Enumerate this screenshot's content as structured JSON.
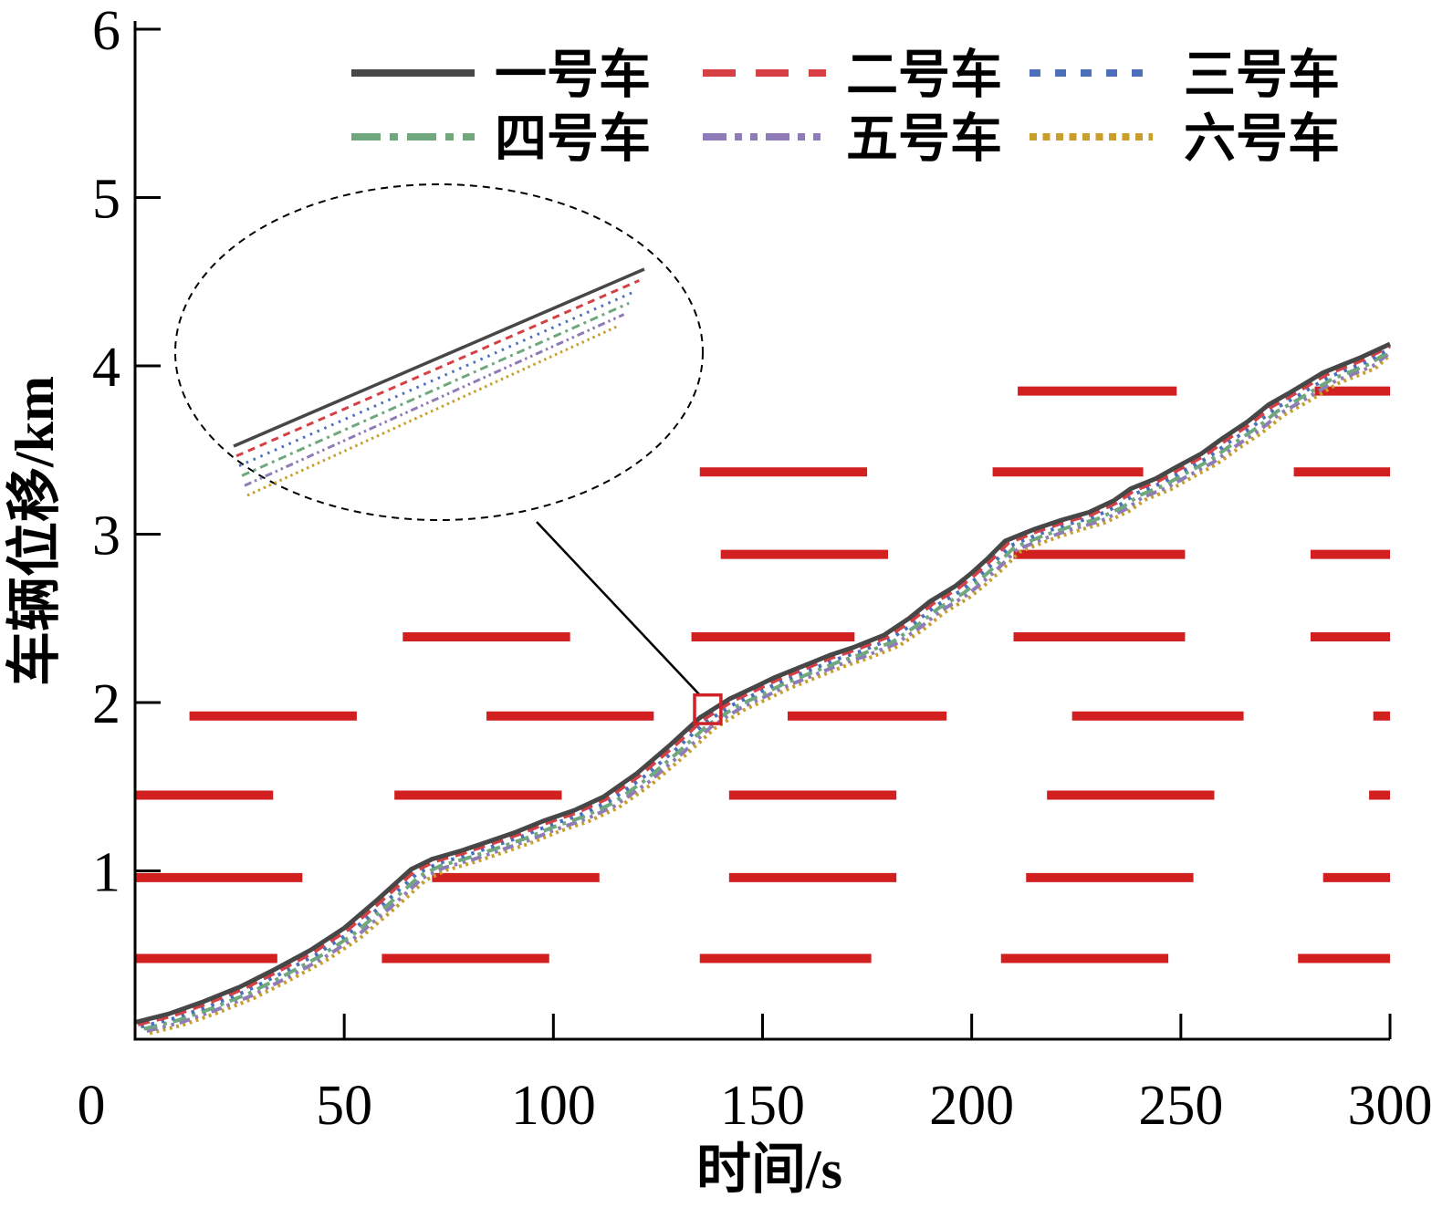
{
  "figure": {
    "background": "#ffffff"
  },
  "axes": {
    "x": {
      "title": "时间/s",
      "min": 0,
      "max": 300,
      "ticks": [
        0,
        50,
        100,
        150,
        200,
        250,
        300
      ]
    },
    "y": {
      "title": "车辆位移/km",
      "min": 0,
      "max": 6,
      "ticks": [
        1,
        2,
        3,
        4,
        5,
        6
      ],
      "origin_label": "0"
    }
  },
  "legend": {
    "rows": 2,
    "columns": 3,
    "position": "top",
    "items": [
      {
        "label": "一号车",
        "color": "#474747",
        "dash": "solid"
      },
      {
        "label": "二号车",
        "color": "#d64045",
        "dash": "dashed"
      },
      {
        "label": "三号车",
        "color": "#4a6fbd",
        "dash": "dotted"
      },
      {
        "label": "四号车",
        "color": "#6fa87c",
        "dash": "dash-dot"
      },
      {
        "label": "五号车",
        "color": "#8f7bb8",
        "dash": "dash-dot-dot"
      },
      {
        "label": "六号车",
        "color": "#c79f2a",
        "dash": "dense-dotted"
      }
    ]
  },
  "chart_data": {
    "type": "line",
    "title": "",
    "xlabel": "时间/s",
    "ylabel": "车辆位移/km",
    "xlim": [
      0,
      300
    ],
    "ylim": [
      0,
      6
    ],
    "grid": false,
    "legend_position": "top",
    "x_ticks": [
      0,
      50,
      100,
      150,
      200,
      250,
      300
    ],
    "y_ticks": [
      0,
      1,
      2,
      3,
      4,
      5,
      6
    ],
    "trajectory_t_s": [
      0,
      8,
      16,
      25,
      33,
      42,
      50,
      58,
      66,
      71,
      78,
      84,
      91,
      98,
      105,
      112,
      120,
      128,
      135,
      142,
      148,
      153,
      160,
      166,
      172,
      179,
      185,
      190,
      196,
      200,
      204,
      208,
      212,
      215,
      221,
      228,
      234,
      238,
      244,
      249,
      255,
      260,
      266,
      271,
      276,
      280,
      284,
      288,
      293,
      300
    ],
    "trajectory_km": [
      0.1,
      0.15,
      0.22,
      0.31,
      0.41,
      0.53,
      0.66,
      0.83,
      1.01,
      1.07,
      1.12,
      1.17,
      1.23,
      1.3,
      1.36,
      1.44,
      1.58,
      1.75,
      1.91,
      2.02,
      2.09,
      2.15,
      2.22,
      2.28,
      2.33,
      2.4,
      2.5,
      2.6,
      2.69,
      2.77,
      2.86,
      2.96,
      3.0,
      3.03,
      3.08,
      3.13,
      3.2,
      3.27,
      3.33,
      3.4,
      3.48,
      3.57,
      3.67,
      3.77,
      3.84,
      3.9,
      3.96,
      4.0,
      4.05,
      4.13
    ],
    "series": [
      {
        "name": "一号车",
        "color": "#474747",
        "dash": "solid"
      },
      {
        "name": "二号车",
        "color": "#d64045",
        "dash": "dashed"
      },
      {
        "name": "三号车",
        "color": "#4a6fbd",
        "dash": "dotted"
      },
      {
        "name": "四号车",
        "color": "#6fa87c",
        "dash": "dash-dot"
      },
      {
        "name": "五号车",
        "color": "#8f7bb8",
        "dash": "dash-dot-dot"
      },
      {
        "name": "六号车",
        "color": "#c79f2a",
        "dash": "dense-dotted"
      }
    ],
    "red_signal_bars": {
      "color": "#d21f1f",
      "positions": [
        {
          "km": 0.48,
          "intervals_s": [
            [
              0,
              34
            ],
            [
              59,
              99
            ],
            [
              135,
              176
            ],
            [
              207,
              247
            ],
            [
              278,
              300
            ]
          ]
        },
        {
          "km": 0.96,
          "intervals_s": [
            [
              0,
              40
            ],
            [
              71,
              111
            ],
            [
              142,
              182
            ],
            [
              213,
              253
            ],
            [
              284,
              300
            ]
          ]
        },
        {
          "km": 1.45,
          "intervals_s": [
            [
              0,
              33
            ],
            [
              62,
              102
            ],
            [
              142,
              182
            ],
            [
              218,
              258
            ],
            [
              295,
              300
            ]
          ]
        },
        {
          "km": 1.92,
          "intervals_s": [
            [
              13,
              53
            ],
            [
              84,
              124
            ],
            [
              156,
              194
            ],
            [
              224,
              265
            ],
            [
              296,
              300
            ]
          ]
        },
        {
          "km": 2.39,
          "intervals_s": [
            [
              64,
              104
            ],
            [
              133,
              172
            ],
            [
              210,
              251
            ],
            [
              281,
              300
            ]
          ]
        },
        {
          "km": 2.88,
          "intervals_s": [
            [
              140,
              180
            ],
            [
              210,
              251
            ],
            [
              281,
              300
            ]
          ]
        },
        {
          "km": 3.37,
          "intervals_s": [
            [
              135,
              175
            ],
            [
              205,
              241
            ],
            [
              277,
              300
            ]
          ]
        },
        {
          "km": 3.85,
          "intervals_s": [
            [
              211,
              249
            ],
            [
              282,
              300
            ]
          ]
        }
      ]
    },
    "inset": {
      "marker_color": "#cf2128",
      "magnified_region": {
        "t_center_s": 136.9,
        "km_center": 1.96,
        "t_span_s": 6.3,
        "km_span": 0.17
      }
    }
  }
}
